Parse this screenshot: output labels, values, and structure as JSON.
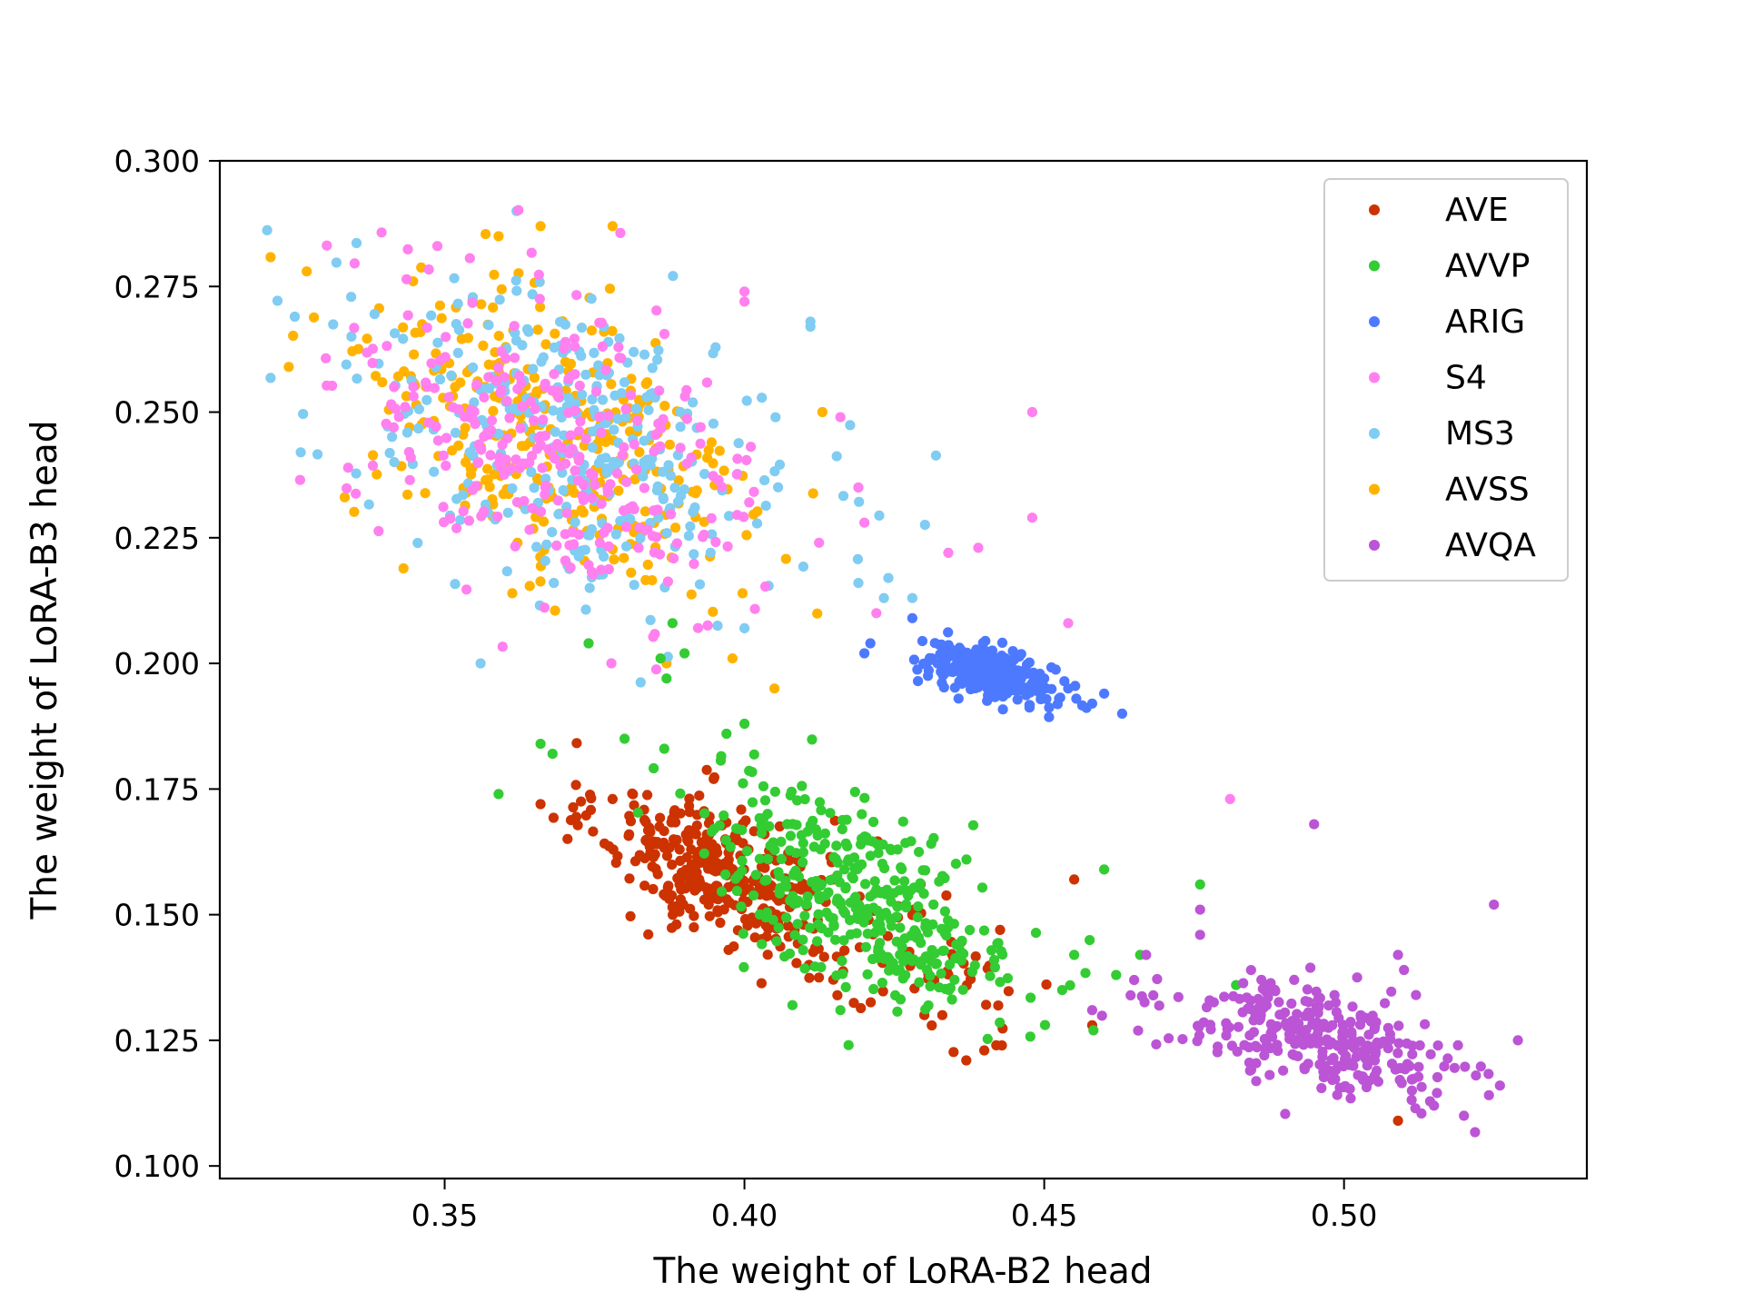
{
  "chart_data": {
    "type": "scatter",
    "title": "",
    "xlabel": "The weight of LoRA-B2 head",
    "ylabel": "The weight of LoRA-B3 head",
    "xlim": [
      0.3125,
      0.5405
    ],
    "ylim": [
      0.0975,
      0.3
    ],
    "x_ticks": [
      0.35,
      0.4,
      0.45,
      0.5
    ],
    "x_tick_labels": [
      "0.35",
      "0.40",
      "0.45",
      "0.50"
    ],
    "y_ticks": [
      0.1,
      0.125,
      0.15,
      0.175,
      0.2,
      0.225,
      0.25,
      0.275,
      0.3
    ],
    "y_tick_labels": [
      "0.100",
      "0.125",
      "0.150",
      "0.175",
      "0.200",
      "0.225",
      "0.250",
      "0.275",
      "0.300"
    ],
    "legend_position": "top-right",
    "point_order": [
      "AVSS",
      "MS3",
      "S4",
      "AVE",
      "AVVP",
      "ARIG",
      "AVQA"
    ],
    "series": [
      {
        "name": "AVE",
        "color": "#cc3300",
        "clusters": [
          {
            "count": 330,
            "cx": 0.395,
            "cy": 0.159,
            "sx": 0.0095,
            "sy": 0.0085,
            "rho": -0.55
          },
          {
            "count": 60,
            "cx": 0.428,
            "cy": 0.142,
            "sx": 0.012,
            "sy": 0.009,
            "rho": -0.5
          }
        ],
        "points": [
          [
            0.437,
            0.121
          ],
          [
            0.44,
            0.123
          ],
          [
            0.442,
            0.124
          ],
          [
            0.458,
            0.128
          ],
          [
            0.509,
            0.109
          ],
          [
            0.455,
            0.157
          ],
          [
            0.366,
            0.172
          ],
          [
            0.378,
            0.173
          ],
          [
            0.43,
            0.13
          ],
          [
            0.433,
            0.13
          ]
        ]
      },
      {
        "name": "AVVP",
        "color": "#33cc33",
        "clusters": [
          {
            "count": 380,
            "cx": 0.42,
            "cy": 0.153,
            "sx": 0.013,
            "sy": 0.011,
            "rho": -0.55
          }
        ],
        "points": [
          [
            0.359,
            0.174
          ],
          [
            0.366,
            0.184
          ],
          [
            0.368,
            0.182
          ],
          [
            0.374,
            0.204
          ],
          [
            0.38,
            0.185
          ],
          [
            0.386,
            0.201
          ],
          [
            0.387,
            0.197
          ],
          [
            0.388,
            0.208
          ],
          [
            0.39,
            0.202
          ],
          [
            0.4,
            0.188
          ],
          [
            0.397,
            0.186
          ],
          [
            0.476,
            0.156
          ],
          [
            0.482,
            0.136
          ],
          [
            0.462,
            0.138
          ],
          [
            0.46,
            0.159
          ],
          [
            0.453,
            0.135
          ],
          [
            0.455,
            0.142
          ],
          [
            0.466,
            0.142
          ],
          [
            0.408,
            0.132
          ],
          [
            0.416,
            0.131
          ]
        ]
      },
      {
        "name": "ARIG",
        "color": "#4d79ff",
        "clusters": [
          {
            "count": 300,
            "cx": 0.441,
            "cy": 0.198,
            "sx": 0.0055,
            "sy": 0.003,
            "rho": -0.6
          }
        ],
        "points": [
          [
            0.428,
            0.209
          ],
          [
            0.421,
            0.204
          ],
          [
            0.42,
            0.202
          ],
          [
            0.46,
            0.194
          ],
          [
            0.463,
            0.19
          ],
          [
            0.458,
            0.192
          ],
          [
            0.454,
            0.195
          ],
          [
            0.45,
            0.197
          ]
        ]
      },
      {
        "name": "S4",
        "color": "#ff80ee",
        "clusters": [
          {
            "count": 290,
            "cx": 0.368,
            "cy": 0.243,
            "sx": 0.017,
            "sy": 0.016,
            "rho": -0.45
          }
        ],
        "points": [
          [
            0.448,
            0.25
          ],
          [
            0.448,
            0.229
          ],
          [
            0.439,
            0.223
          ],
          [
            0.434,
            0.222
          ],
          [
            0.454,
            0.208
          ],
          [
            0.481,
            0.173
          ],
          [
            0.436,
            0.201
          ],
          [
            0.437,
            0.201
          ],
          [
            0.419,
            0.235
          ],
          [
            0.42,
            0.228
          ],
          [
            0.416,
            0.249
          ],
          [
            0.4,
            0.274
          ],
          [
            0.4,
            0.272
          ],
          [
            0.422,
            0.21
          ]
        ]
      },
      {
        "name": "MS3",
        "color": "#80ccf2",
        "clusters": [
          {
            "count": 320,
            "cx": 0.372,
            "cy": 0.244,
            "sx": 0.019,
            "sy": 0.016,
            "rho": -0.45
          }
        ],
        "points": [
          [
            0.325,
            0.269
          ],
          [
            0.326,
            0.242
          ],
          [
            0.362,
            0.29
          ],
          [
            0.356,
            0.2
          ],
          [
            0.411,
            0.267
          ],
          [
            0.411,
            0.268
          ],
          [
            0.428,
            0.213
          ],
          [
            0.437,
            0.199
          ],
          [
            0.438,
            0.198
          ],
          [
            0.419,
            0.216
          ],
          [
            0.424,
            0.217
          ],
          [
            0.4,
            0.207
          ]
        ]
      },
      {
        "name": "AVSS",
        "color": "#ffb300",
        "clusters": [
          {
            "count": 330,
            "cx": 0.367,
            "cy": 0.244,
            "sx": 0.017,
            "sy": 0.016,
            "rho": -0.4
          }
        ],
        "points": [
          [
            0.324,
            0.259
          ],
          [
            0.327,
            0.278
          ],
          [
            0.378,
            0.287
          ],
          [
            0.366,
            0.287
          ],
          [
            0.359,
            0.285
          ],
          [
            0.405,
            0.195
          ],
          [
            0.387,
            0.2
          ],
          [
            0.398,
            0.201
          ],
          [
            0.413,
            0.25
          ]
        ]
      },
      {
        "name": "AVQA",
        "color": "#bb55d5",
        "clusters": [
          {
            "count": 290,
            "cx": 0.496,
            "cy": 0.125,
            "sx": 0.012,
            "sy": 0.006,
            "rho": -0.55
          }
        ],
        "points": [
          [
            0.495,
            0.168
          ],
          [
            0.525,
            0.152
          ],
          [
            0.476,
            0.151
          ],
          [
            0.476,
            0.146
          ],
          [
            0.467,
            0.142
          ],
          [
            0.509,
            0.142
          ],
          [
            0.51,
            0.139
          ],
          [
            0.512,
            0.134
          ],
          [
            0.529,
            0.125
          ],
          [
            0.526,
            0.116
          ],
          [
            0.52,
            0.11
          ],
          [
            0.458,
            0.131
          ],
          [
            0.465,
            0.137
          ],
          [
            0.515,
            0.112
          ],
          [
            0.519,
            0.124
          ],
          [
            0.522,
            0.118
          ]
        ]
      }
    ]
  }
}
